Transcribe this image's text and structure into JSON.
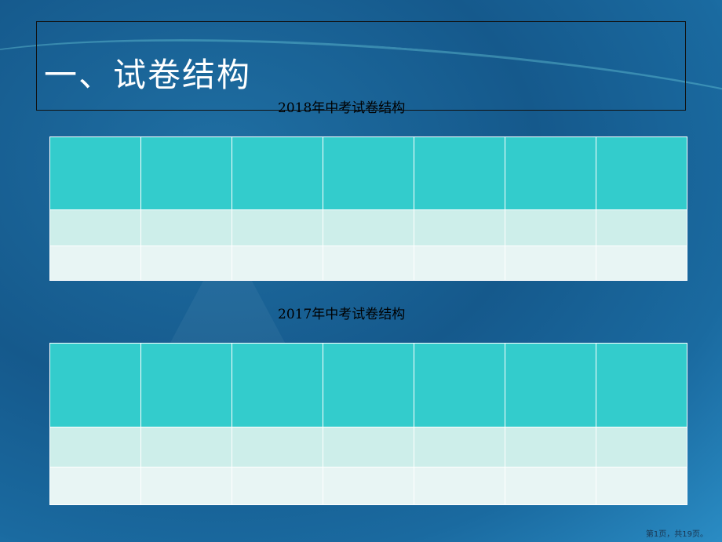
{
  "slide": {
    "title": "一、试卷结构",
    "table1_caption": "2018年中考试卷结构",
    "table2_caption": "2017年中考试卷结构",
    "footer": "第1页，共19页。"
  },
  "tables": {
    "columns": 7,
    "rows": 3,
    "header_color": "#33cccc",
    "row1_color": "#cdeeea",
    "row2_color": "#e8f5f4"
  }
}
